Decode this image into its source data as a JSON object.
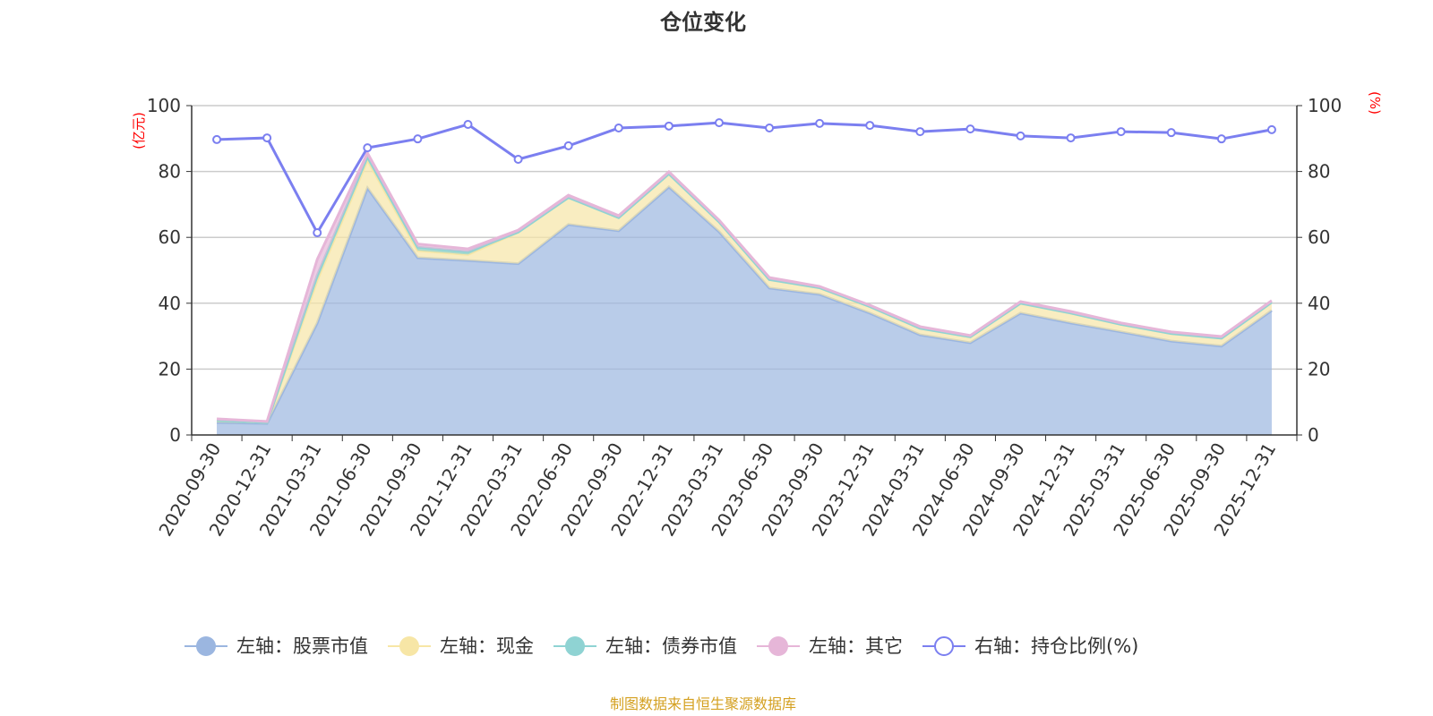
{
  "chart_data": {
    "type": "area",
    "title": "仓位变化",
    "left_unit": "(亿元)",
    "right_unit": "(%)",
    "ylim_left": [
      0,
      100
    ],
    "ylim_right": [
      0,
      100
    ],
    "yticks": [
      0,
      20,
      40,
      60,
      80,
      100
    ],
    "categories": [
      "2020-09-30",
      "2020-12-31",
      "2021-03-31",
      "2021-06-30",
      "2021-09-30",
      "2021-12-31",
      "2022-03-31",
      "2022-06-30",
      "2022-09-30",
      "2022-12-31",
      "2023-03-31",
      "2023-06-30",
      "2023-09-30",
      "2023-12-31",
      "2024-03-31",
      "2024-06-30",
      "2024-09-30",
      "2024-12-31",
      "2025-03-31",
      "2025-06-30",
      "2025-09-30",
      "2025-12-31"
    ],
    "series": [
      {
        "name": "左轴：股票市值",
        "color": "#9bb6e0",
        "values": [
          3.8,
          3.5,
          34,
          75,
          53.8,
          53,
          52,
          63.9,
          62,
          75.3,
          61.7,
          44.6,
          42.7,
          37,
          30.4,
          28,
          37,
          34,
          31.3,
          28.5,
          27,
          37.8
        ]
      },
      {
        "name": "左轴：现金",
        "color": "#f7e6a6",
        "values": [
          0.6,
          0.3,
          13,
          8.5,
          2.2,
          1.8,
          9.6,
          8.2,
          4,
          4,
          3,
          2.6,
          2,
          2,
          2,
          1.8,
          3,
          3,
          2.3,
          2.3,
          2.4,
          2.5
        ]
      },
      {
        "name": "左轴：债券市值",
        "color": "#8fd3d3",
        "values": [
          0,
          0,
          1.5,
          1,
          1,
          0.8,
          0,
          0,
          0,
          0,
          0,
          0,
          0,
          0,
          0,
          0,
          0,
          0,
          0,
          0,
          0,
          0
        ]
      },
      {
        "name": "左轴：其它",
        "color": "#e6b6d8",
        "values": [
          0.5,
          0.3,
          4.8,
          1.1,
          1,
          0.9,
          0.6,
          0.7,
          0.6,
          0.6,
          0.5,
          0.6,
          0.4,
          0.4,
          0.5,
          0.4,
          0.5,
          0.5,
          0.4,
          0.5,
          0.5,
          0.5
        ]
      },
      {
        "name": "右轴：持仓比例(%)",
        "color": "#7b7ff0",
        "axis": "right",
        "values": [
          89.7,
          90.2,
          61.4,
          87.2,
          89.9,
          94.3,
          83.7,
          87.8,
          93.2,
          93.8,
          94.8,
          93.2,
          94.6,
          94,
          92.1,
          92.9,
          90.8,
          90.2,
          92.1,
          91.8,
          89.9,
          92.7
        ]
      }
    ],
    "legend_position": "bottom",
    "source": "制图数据来自恒生聚源数据库"
  }
}
